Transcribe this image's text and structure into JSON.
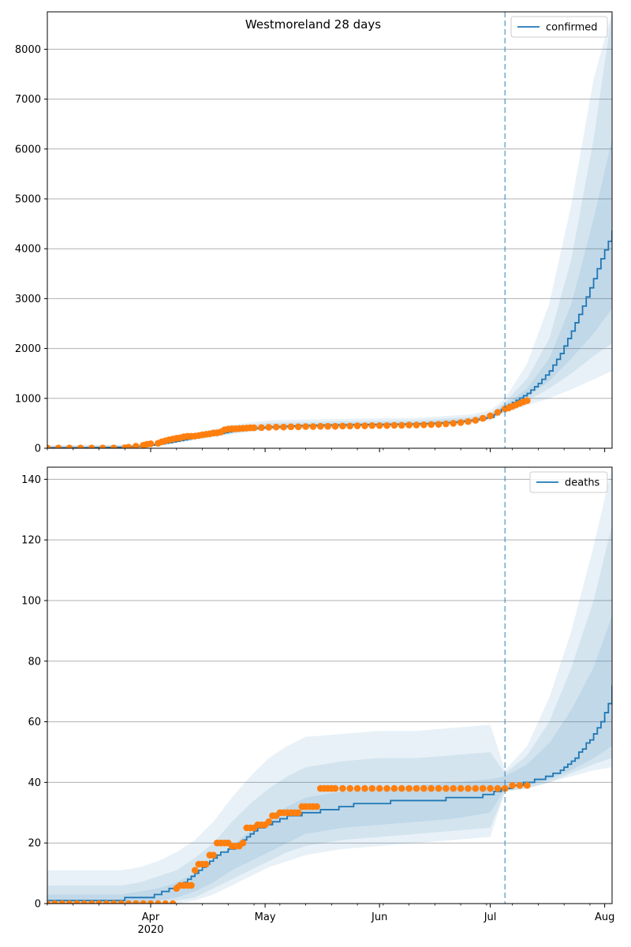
{
  "figure": {
    "title": "Westmoreland 28 days"
  },
  "colors": {
    "model_line": "#1f77b4",
    "band": "#1f77b4",
    "observed": "#ff7f0e",
    "vline": "#1f77b4",
    "grid": "#b0b0b0"
  },
  "chart_data": [
    {
      "type": "line",
      "name": "confirmed",
      "legend": [
        "confirmed"
      ],
      "legend_position": "top-right",
      "xlim_days": [
        0,
        153
      ],
      "ylim": [
        0,
        8750
      ],
      "yticks": [
        0,
        1000,
        2000,
        3000,
        4000,
        5000,
        6000,
        7000,
        8000
      ],
      "grid": "y",
      "forecast_start_day": 124,
      "model_x": [
        0,
        10,
        20,
        25,
        30,
        35,
        40,
        45,
        50,
        55,
        60,
        65,
        70,
        75,
        80,
        85,
        90,
        95,
        100,
        105,
        110,
        115,
        120,
        124,
        127,
        130,
        133,
        136,
        139,
        142,
        145,
        148,
        150,
        152,
        153
      ],
      "model_y": [
        10,
        10,
        20,
        40,
        75,
        140,
        210,
        270,
        340,
        390,
        420,
        440,
        455,
        465,
        470,
        475,
        478,
        482,
        487,
        500,
        520,
        560,
        620,
        830,
        960,
        1100,
        1300,
        1550,
        1900,
        2350,
        2850,
        3400,
        3800,
        4150,
        4370
      ],
      "bands": [
        {
          "x": [
            0,
            25,
            30,
            40,
            50,
            60,
            80,
            100,
            115,
            120,
            124,
            130,
            136,
            142,
            148,
            153
          ],
          "lo": [
            0,
            20,
            55,
            165,
            280,
            370,
            420,
            440,
            500,
            560,
            700,
            860,
            1000,
            1180,
            1380,
            1550
          ],
          "hi": [
            60,
            80,
            130,
            290,
            470,
            560,
            590,
            610,
            680,
            760,
            990,
            1700,
            2900,
            4900,
            7400,
            8750
          ]
        },
        {
          "x": [
            0,
            25,
            30,
            40,
            50,
            60,
            80,
            100,
            115,
            120,
            124,
            130,
            136,
            142,
            148,
            153
          ],
          "lo": [
            0,
            28,
            62,
            180,
            300,
            390,
            435,
            455,
            520,
            585,
            750,
            950,
            1200,
            1500,
            1850,
            2100
          ],
          "hi": [
            45,
            65,
            110,
            260,
            420,
            510,
            540,
            560,
            630,
            700,
            920,
            1400,
            2200,
            3800,
            6200,
            8750
          ]
        },
        {
          "x": [
            0,
            25,
            30,
            40,
            50,
            60,
            80,
            100,
            115,
            120,
            124,
            130,
            136,
            142,
            148,
            153
          ],
          "lo": [
            0,
            32,
            68,
            190,
            315,
            405,
            445,
            468,
            535,
            600,
            790,
            1020,
            1350,
            1800,
            2300,
            2800
          ],
          "hi": [
            30,
            52,
            95,
            235,
            375,
            465,
            500,
            520,
            595,
            660,
            870,
            1200,
            1800,
            2900,
            4600,
            6200
          ]
        }
      ],
      "observed_x": [
        0,
        3,
        6,
        9,
        12,
        15,
        18,
        21,
        22,
        24,
        26,
        27,
        28,
        30,
        31,
        32,
        33,
        34,
        35,
        36,
        37,
        38,
        39,
        40,
        41,
        42,
        43,
        44,
        45,
        46,
        47,
        48,
        49,
        50,
        51,
        52,
        53,
        54,
        55,
        56,
        58,
        60,
        62,
        64,
        66,
        68,
        70,
        72,
        74,
        76,
        78,
        80,
        82,
        84,
        86,
        88,
        90,
        92,
        94,
        96,
        98,
        100,
        102,
        104,
        106,
        108,
        110,
        112,
        114,
        116,
        118,
        120,
        122,
        124,
        125,
        126,
        127,
        128,
        129,
        130
      ],
      "observed_y": [
        5,
        5,
        5,
        5,
        5,
        5,
        5,
        10,
        20,
        40,
        60,
        80,
        90,
        100,
        130,
        150,
        170,
        185,
        200,
        210,
        230,
        240,
        240,
        245,
        255,
        270,
        280,
        290,
        305,
        310,
        325,
        370,
        385,
        390,
        390,
        395,
        400,
        405,
        410,
        410,
        415,
        420,
        425,
        425,
        430,
        430,
        435,
        435,
        440,
        440,
        440,
        445,
        445,
        450,
        450,
        455,
        455,
        455,
        460,
        460,
        465,
        465,
        470,
        475,
        480,
        490,
        500,
        515,
        535,
        560,
        600,
        650,
        720,
        790,
        810,
        840,
        870,
        900,
        930,
        955
      ]
    },
    {
      "type": "line",
      "name": "deaths",
      "legend": [
        "deaths"
      ],
      "legend_position": "top-right",
      "xlim_days": [
        0,
        153
      ],
      "ylim": [
        0,
        144
      ],
      "yticks": [
        0,
        20,
        40,
        60,
        80,
        100,
        120,
        140
      ],
      "grid": "y",
      "forecast_start_day": 124,
      "x_ticks": [
        {
          "day": 28,
          "label": "Apr",
          "sub": "2020"
        },
        {
          "day": 59,
          "label": "May"
        },
        {
          "day": 90,
          "label": "Jun"
        },
        {
          "day": 120,
          "label": "Jul"
        },
        {
          "day": 151,
          "label": "Aug"
        }
      ],
      "model_x": [
        0,
        5,
        10,
        15,
        20,
        22,
        25,
        28,
        30,
        32,
        34,
        36,
        38,
        40,
        42,
        44,
        46,
        48,
        50,
        52,
        54,
        56,
        58,
        60,
        62,
        64,
        66,
        68,
        70,
        72,
        75,
        78,
        80,
        85,
        90,
        95,
        100,
        105,
        110,
        115,
        120,
        124,
        127,
        130,
        133,
        136,
        139,
        142,
        145,
        148,
        150,
        152,
        153
      ],
      "model_y": [
        1,
        1,
        1,
        1,
        1,
        2,
        2,
        2,
        3,
        4,
        5,
        6,
        8,
        10,
        12,
        14,
        16,
        17,
        18,
        20,
        22,
        24,
        25,
        26,
        27,
        28,
        29,
        29,
        30,
        30,
        31,
        31,
        32,
        33,
        33,
        34,
        34,
        34,
        35,
        35,
        36,
        38,
        39,
        40,
        41,
        42,
        44,
        47,
        51,
        56,
        60,
        66,
        72
      ],
      "bands": [
        {
          "x": [
            0,
            10,
            20,
            25,
            30,
            35,
            40,
            45,
            50,
            55,
            60,
            65,
            70,
            80,
            90,
            100,
            110,
            120,
            124,
            130,
            136,
            142,
            148,
            153
          ],
          "lo": [
            0,
            0,
            0,
            0,
            0,
            0,
            1,
            3,
            6,
            9,
            12,
            14,
            16,
            18,
            19,
            20,
            21,
            22,
            37,
            38,
            40,
            42,
            44,
            45
          ],
          "hi": [
            11,
            11,
            11,
            12,
            14,
            17,
            21,
            27,
            35,
            42,
            48,
            52,
            55,
            56,
            57,
            57,
            58,
            59,
            44,
            52,
            68,
            90,
            118,
            144
          ]
        },
        {
          "x": [
            0,
            10,
            20,
            25,
            30,
            35,
            40,
            45,
            50,
            55,
            60,
            65,
            70,
            80,
            90,
            100,
            110,
            120,
            124,
            130,
            136,
            142,
            148,
            153
          ],
          "lo": [
            0,
            0,
            0,
            0,
            1,
            1,
            2,
            5,
            8,
            11,
            14,
            17,
            19,
            21,
            22,
            23,
            24,
            25,
            37,
            38,
            40,
            43,
            46,
            48
          ],
          "hi": [
            6,
            6,
            6,
            7,
            9,
            11,
            15,
            20,
            27,
            33,
            38,
            42,
            45,
            47,
            48,
            48,
            49,
            50,
            43,
            49,
            60,
            78,
            100,
            125
          ]
        },
        {
          "x": [
            0,
            10,
            20,
            25,
            30,
            35,
            40,
            45,
            50,
            55,
            60,
            65,
            70,
            80,
            90,
            100,
            110,
            120,
            124,
            130,
            136,
            142,
            148,
            153
          ],
          "lo": [
            0,
            0,
            0,
            0,
            1,
            2,
            4,
            7,
            11,
            14,
            17,
            20,
            23,
            25,
            26,
            27,
            28,
            30,
            38,
            39,
            41,
            44,
            48,
            52
          ],
          "hi": [
            3,
            3,
            3,
            4,
            5,
            7,
            10,
            14,
            19,
            24,
            28,
            32,
            35,
            37,
            38,
            39,
            40,
            41,
            42,
            46,
            53,
            64,
            78,
            95
          ]
        }
      ],
      "observed_x": [
        0,
        2,
        4,
        6,
        8,
        10,
        12,
        14,
        16,
        18,
        20,
        22,
        24,
        26,
        28,
        30,
        32,
        34,
        35,
        36,
        37,
        38,
        39,
        40,
        41,
        42,
        43,
        44,
        45,
        46,
        47,
        48,
        49,
        50,
        51,
        52,
        53,
        54,
        55,
        56,
        57,
        58,
        59,
        60,
        61,
        62,
        63,
        64,
        65,
        66,
        67,
        68,
        69,
        70,
        71,
        72,
        73,
        74,
        75,
        76,
        77,
        78,
        80,
        82,
        84,
        86,
        88,
        90,
        92,
        94,
        96,
        98,
        100,
        102,
        104,
        106,
        108,
        110,
        112,
        114,
        116,
        118,
        120,
        122,
        124,
        126,
        128,
        130
      ],
      "observed_y": [
        0,
        0,
        0,
        0,
        0,
        0,
        0,
        0,
        0,
        0,
        0,
        0,
        0,
        0,
        0,
        0,
        0,
        0,
        5,
        6,
        6,
        6,
        6,
        11,
        13,
        13,
        13,
        16,
        16,
        20,
        20,
        20,
        20,
        19,
        19,
        19,
        20,
        25,
        25,
        25,
        26,
        26,
        26,
        27,
        29,
        29,
        30,
        30,
        30,
        30,
        30,
        30,
        32,
        32,
        32,
        32,
        32,
        38,
        38,
        38,
        38,
        38,
        38,
        38,
        38,
        38,
        38,
        38,
        38,
        38,
        38,
        38,
        38,
        38,
        38,
        38,
        38,
        38,
        38,
        38,
        38,
        38,
        38,
        38,
        38,
        39,
        39,
        39
      ]
    }
  ]
}
